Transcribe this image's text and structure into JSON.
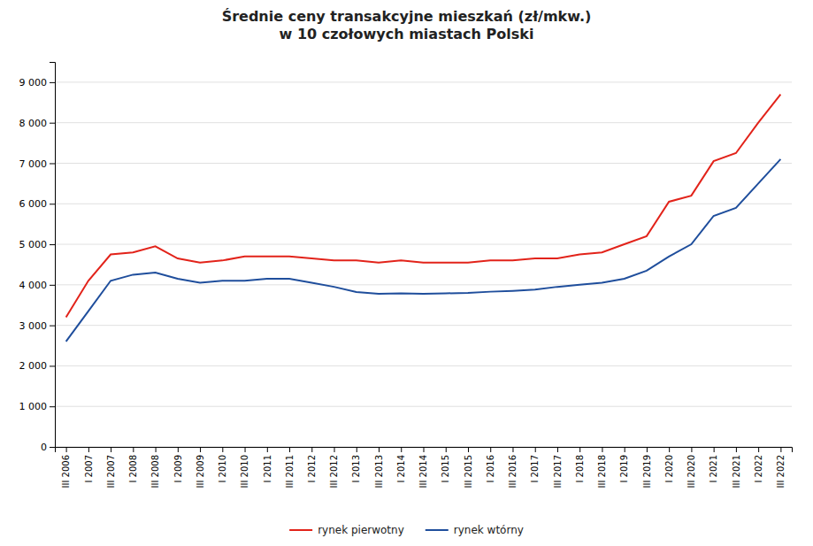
{
  "chart_data": {
    "type": "line",
    "title": "Średnie ceny transakcyjne mieszkań (zł/mkw.)\nw 10 czołowych miastach Polski",
    "categories": [
      "III 2006",
      "I 2007",
      "III 2007",
      "I 2008",
      "III 2008",
      "I 2009",
      "III 2009",
      "I 2010",
      "III 2010",
      "I 2011",
      "III 2011",
      "I 2012",
      "III 2012",
      "I 2013",
      "III 2013",
      "I 2014",
      "III 2014",
      "I 2015",
      "III 2015",
      "I 2016",
      "III 2016",
      "I 2017",
      "III 2017",
      "I 2018",
      "III 2018",
      "I 2019",
      "III 2019",
      "I 2020",
      "III 2020",
      "I 2021",
      "III 2021",
      "I 2022",
      "III 2022"
    ],
    "series": [
      {
        "name": "rynek pierwotny",
        "color": "#e2231a",
        "values": [
          3200,
          4100,
          4750,
          4800,
          4950,
          4650,
          4550,
          4600,
          4700,
          4700,
          4700,
          4650,
          4600,
          4600,
          4550,
          4600,
          4550,
          4550,
          4550,
          4600,
          4600,
          4650,
          4650,
          4750,
          4800,
          5000,
          5200,
          6050,
          6200,
          7050,
          7250,
          8000,
          8700
        ]
      },
      {
        "name": "rynek wtórny",
        "color": "#1f4e9c",
        "values": [
          2600,
          3350,
          4100,
          4250,
          4300,
          4150,
          4050,
          4100,
          4100,
          4150,
          4150,
          4050,
          3950,
          3820,
          3780,
          3790,
          3780,
          3790,
          3800,
          3830,
          3850,
          3880,
          3950,
          4000,
          4050,
          4150,
          4350,
          4700,
          5000,
          5700,
          5900,
          6500,
          7100
        ]
      }
    ],
    "ylim": [
      0,
      9500
    ],
    "yticks": [
      0,
      {
        "value": 1000,
        "label": "1 000"
      },
      {
        "value": 2000,
        "label": "2 000"
      },
      {
        "value": 3000,
        "label": "3 000"
      },
      {
        "value": 4000,
        "label": "4 000"
      },
      {
        "value": 5000,
        "label": "5 000"
      },
      {
        "value": 6000,
        "label": "6 000"
      },
      {
        "value": 7000,
        "label": "7 000"
      },
      {
        "value": 8000,
        "label": "8 000"
      },
      {
        "value": 9000,
        "label": "9 000"
      }
    ],
    "grid": true,
    "legend": "bottom"
  }
}
